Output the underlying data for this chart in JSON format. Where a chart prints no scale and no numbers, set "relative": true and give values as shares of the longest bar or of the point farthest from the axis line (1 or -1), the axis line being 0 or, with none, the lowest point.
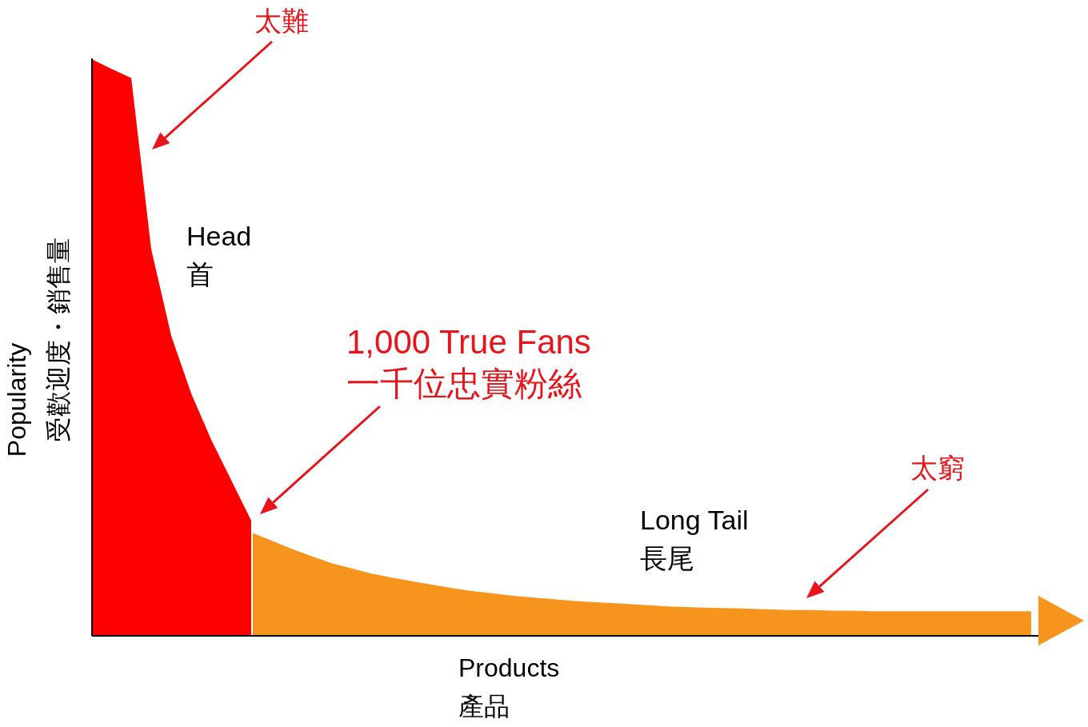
{
  "chart_data": {
    "type": "area",
    "relative": true,
    "xlabel": "Products\n產品",
    "ylabel": "Popularity\n受歡迎度・銷售量",
    "categories": [
      null,
      null,
      null,
      null,
      null,
      null,
      null,
      null,
      null,
      null,
      null,
      null,
      null,
      null,
      null,
      null,
      null,
      null,
      null,
      null,
      null,
      null,
      null,
      null,
      null,
      null,
      null,
      null,
      null,
      null,
      null,
      null,
      null,
      null,
      null,
      null,
      null,
      null,
      null,
      null,
      null,
      null,
      null,
      null,
      null,
      null,
      null,
      null
    ],
    "series": [
      {
        "color": "#ff0000",
        "values": [
          1,
          0.983,
          0.967,
          0.67,
          0.52,
          0.42,
          0.34,
          0.27,
          0.2,
          null,
          null,
          null,
          null,
          null,
          null,
          null,
          null,
          null,
          null,
          null,
          null,
          null,
          null,
          null,
          null,
          null,
          null,
          null,
          null,
          null,
          null,
          null,
          null,
          null,
          null,
          null,
          null,
          null,
          null,
          null,
          null,
          null,
          null,
          null,
          null,
          null,
          null,
          null
        ]
      },
      {
        "color": "#f7941d",
        "values": [
          null,
          null,
          null,
          null,
          null,
          null,
          null,
          null,
          0.18,
          0.166,
          0.152,
          0.139,
          0.127,
          0.118,
          0.109,
          0.102,
          0.096,
          0.09,
          0.084,
          0.079,
          0.075,
          0.071,
          0.068,
          0.065,
          0.062,
          0.06,
          0.058,
          0.056,
          0.054,
          0.052,
          0.051,
          0.05,
          0.049,
          0.048,
          0.047,
          0.046,
          0.046,
          0.045,
          0.045,
          0.044,
          0.044,
          0.044,
          0.044,
          0.044,
          0.044,
          0.044,
          0.044,
          0.044
        ]
      }
    ],
    "annotations": [
      "太難",
      "Head\n首",
      "1,000 True Fans\n一千位忠實粉絲",
      "Long Tail\n長尾",
      "太窮"
    ]
  }
}
